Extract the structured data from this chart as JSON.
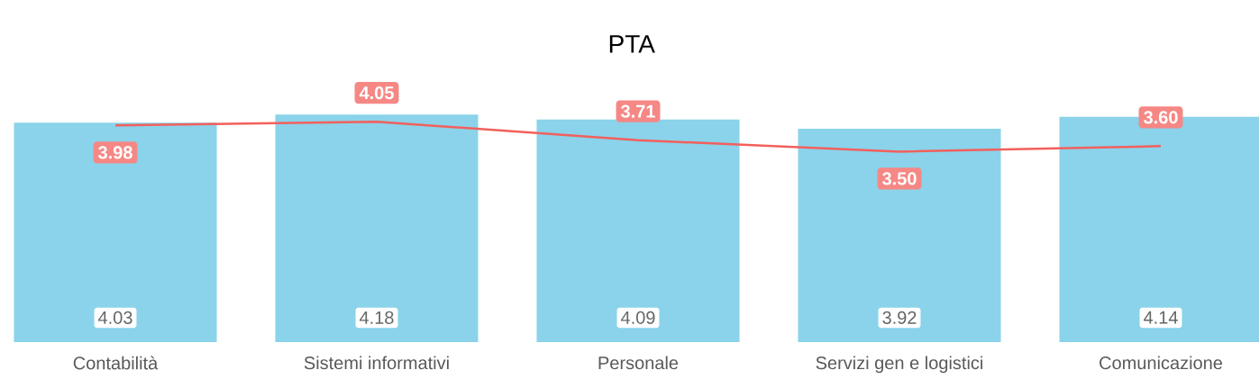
{
  "chart_data": {
    "type": "bar",
    "title": "PTA",
    "categories": [
      "Contabilità",
      "Sistemi informativi",
      "Personale",
      "Servizi gen e logistici",
      "Comunicazione"
    ],
    "series": [
      {
        "color": "#8AD3EA",
        "values": [
          4.03,
          4.18,
          4.09,
          3.92,
          4.14
        ],
        "value_labels": [
          "4.03",
          "4.18",
          "4.09",
          "3.92",
          "4.14"
        ]
      },
      {
        "type": "line",
        "color": "#F2605C",
        "values": [
          3.98,
          4.05,
          3.71,
          3.5,
          3.6
        ],
        "value_labels": [
          "3.98",
          "4.05",
          "3.71",
          "3.50",
          "3.60"
        ]
      }
    ]
  }
}
